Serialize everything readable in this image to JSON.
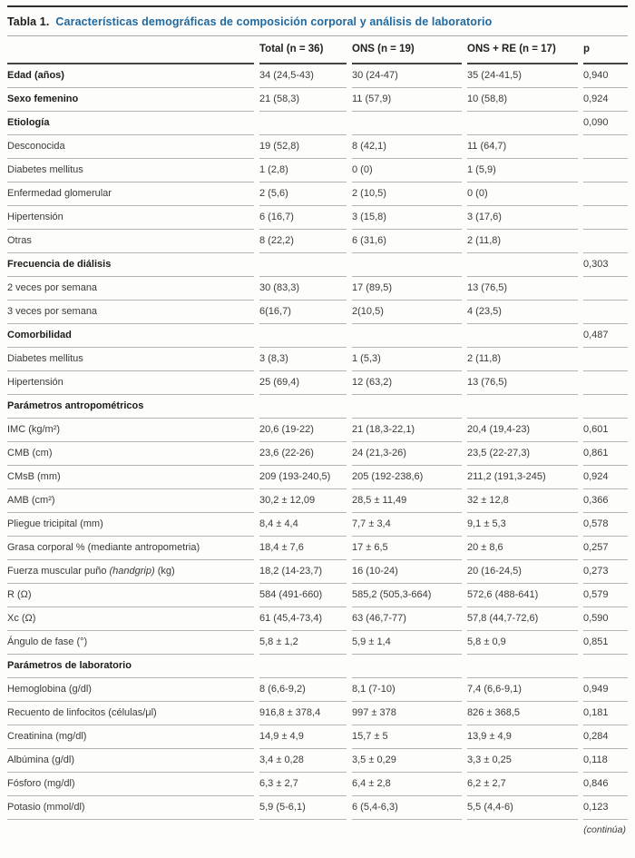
{
  "title": {
    "label": "Tabla 1.",
    "text": "Características demográficas de composición corporal y análisis de laboratorio"
  },
  "colors": {
    "title_blue": "#20699f",
    "top_rule": "#2e2e2e",
    "header_line": "#454545",
    "row_line": "#b3b3b3",
    "text": "#3a3a38"
  },
  "footer": {
    "continued": "(continúa)"
  },
  "table": {
    "columns": [
      "",
      "Total (n = 36)",
      "ONS (n = 19)",
      "ONS + RE (n = 17)",
      "p"
    ],
    "rows": [
      {
        "label": "Edad (años)",
        "bold": true,
        "total": "34 (24,5-43)",
        "ons": "30 (24-47)",
        "onsre": "35 (24-41,5)",
        "p": "0,940"
      },
      {
        "label": "Sexo femenino",
        "bold": true,
        "total": "21 (58,3)",
        "ons": "11 (57,9)",
        "onsre": "10 (58,8)",
        "p": "0,924"
      },
      {
        "label": "Etiología",
        "bold": true,
        "total": "",
        "ons": "",
        "onsre": "",
        "p": "0,090"
      },
      {
        "label": "Desconocida",
        "total": "19 (52,8)",
        "ons": "8 (42,1)",
        "onsre": "11 (64,7)",
        "p": ""
      },
      {
        "label": "Diabetes mellitus",
        "total": "1 (2,8)",
        "ons": "0 (0)",
        "onsre": "1 (5,9)",
        "p": ""
      },
      {
        "label": "Enfermedad glomerular",
        "total": "2 (5,6)",
        "ons": "2 (10,5)",
        "onsre": "0 (0)",
        "p": ""
      },
      {
        "label": "Hipertensión",
        "total": "6 (16,7)",
        "ons": "3 (15,8)",
        "onsre": "3 (17,6)",
        "p": ""
      },
      {
        "label": "Otras",
        "total": "8 (22,2)",
        "ons": "6 (31,6)",
        "onsre": "2 (11,8)",
        "p": ""
      },
      {
        "label": "Frecuencia de diálisis",
        "bold": true,
        "total": "",
        "ons": "",
        "onsre": "",
        "p": "0,303"
      },
      {
        "label": "2 veces por semana",
        "total": "30 (83,3)",
        "ons": "17 (89,5)",
        "onsre": "13 (76,5)",
        "p": ""
      },
      {
        "label": "3 veces por semana",
        "total": "6(16,7)",
        "ons": "2(10,5)",
        "onsre": "4 (23,5)",
        "p": ""
      },
      {
        "label": "Comorbilidad",
        "bold": true,
        "total": "",
        "ons": "",
        "onsre": "",
        "p": "0,487"
      },
      {
        "label": "Diabetes mellitus",
        "total": "3 (8,3)",
        "ons": "1 (5,3)",
        "onsre": "2 (11,8)",
        "p": ""
      },
      {
        "label": "Hipertensión",
        "total": "25 (69,4)",
        "ons": "12 (63,2)",
        "onsre": "13 (76,5)",
        "p": ""
      },
      {
        "label": "Parámetros antropométricos",
        "bold": true,
        "total": "",
        "ons": "",
        "onsre": "",
        "p": ""
      },
      {
        "label": "IMC (kg/m²)",
        "total": "20,6 (19-22)",
        "ons": "21 (18,3-22,1)",
        "onsre": "20,4 (19,4-23)",
        "p": "0,601"
      },
      {
        "label": "CMB (cm)",
        "total": "23,6 (22-26)",
        "ons": "24 (21,3-26)",
        "onsre": "23,5 (22-27,3)",
        "p": "0,861"
      },
      {
        "label": "CMsB (mm)",
        "total": "209 (193-240,5)",
        "ons": "205 (192-238,6)",
        "onsre": "211,2 (191,3-245)",
        "p": "0,924"
      },
      {
        "label": "AMB (cm²)",
        "total": "30,2 ± 12,09",
        "ons": "28,5 ± 11,49",
        "onsre": "32 ± 12,8",
        "p": "0,366"
      },
      {
        "label": "Pliegue tricipital (mm)",
        "total": "8,4 ± 4,4",
        "ons": "7,7 ± 3,4",
        "onsre": "9,1 ± 5,3",
        "p": "0,578"
      },
      {
        "label": "Grasa corporal % (mediante antropometria)",
        "total": "18,4 ± 7,6",
        "ons": "17 ± 6,5",
        "onsre": "20 ± 8,6",
        "p": "0,257"
      },
      {
        "label": "Fuerza muscular puño ",
        "label_italic": "(handgrip)",
        "label_suffix": " (kg)",
        "total": "18,2 (14-23,7)",
        "ons": "16 (10-24)",
        "onsre": "20 (16-24,5)",
        "p": "0,273"
      },
      {
        "label": "R (Ω)",
        "total": "584 (491-660)",
        "ons": "585,2 (505,3-664)",
        "onsre": "572,6 (488-641)",
        "p": "0,579"
      },
      {
        "label": "Xc (Ω)",
        "total": "61 (45,4-73,4)",
        "ons": "63 (46,7-77)",
        "onsre": "57,8 (44,7-72,6)",
        "p": "0,590"
      },
      {
        "label": "Ángulo de fase (°)",
        "total": "5,8 ± 1,2",
        "ons": "5,9 ± 1,4",
        "onsre": "5,8 ± 0,9",
        "p": "0,851"
      },
      {
        "label": "Parámetros de laboratorio",
        "bold": true,
        "total": "",
        "ons": "",
        "onsre": "",
        "p": ""
      },
      {
        "label": "Hemoglobina (g/dl)",
        "total": "8 (6,6-9,2)",
        "ons": "8,1 (7-10)",
        "onsre": "7,4 (6,6-9,1)",
        "p": "0,949"
      },
      {
        "label": "Recuento de linfocitos (células/μl)",
        "total": "916,8 ± 378,4",
        "ons": "997 ± 378",
        "onsre": "826 ± 368,5",
        "p": "0,181"
      },
      {
        "label": "Creatinina (mg/dl)",
        "total": "14,9 ± 4,9",
        "ons": "15,7 ± 5",
        "onsre": "13,9 ± 4,9",
        "p": "0,284"
      },
      {
        "label": "Albúmina (g/dl)",
        "total": "3,4 ± 0,28",
        "ons": "3,5 ± 0,29",
        "onsre": "3,3 ± 0,25",
        "p": "0,118"
      },
      {
        "label": "Fósforo (mg/dl)",
        "total": "6,3 ± 2,7",
        "ons": "6,4 ± 2,8",
        "onsre": "6,2 ± 2,7",
        "p": "0,846"
      },
      {
        "label": "Potasio (mmol/dl)",
        "total": "5,9 (5-6,1)",
        "ons": "6 (5,4-6,3)",
        "onsre": "5,5 (4,4-6)",
        "p": "0,123"
      }
    ]
  }
}
